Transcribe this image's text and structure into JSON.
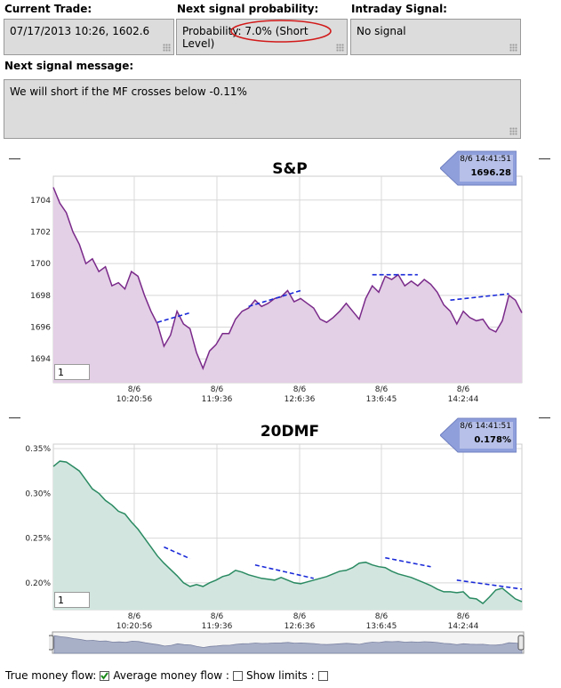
{
  "current_trade": {
    "label": "Current Trade:",
    "value": "07/17/2013 10:26, 1602.6"
  },
  "next_probability": {
    "label": "Next signal probability:",
    "value": "Probability: 7.0% (Short Level)"
  },
  "intraday": {
    "label": "Intraday Signal:",
    "value": "No signal"
  },
  "next_message": {
    "label": "Next signal message:",
    "value": "We will short if  the MF crosses below -0.11%"
  },
  "colors": {
    "sp_line": "#7a2a8a",
    "sp_fill": "#e3cfe6",
    "mf_line": "#2a8a62",
    "mf_fill": "#d2e6df",
    "trend": "#1a2ad8",
    "circle": "#d21a1a",
    "badge": "#8f9fdc"
  },
  "charts": {
    "sp": {
      "title": "S&P",
      "badge_date": "8/6 14:41:51",
      "badge_value": "1696.28",
      "zoom_value": "1"
    },
    "mf": {
      "title": "20DMF",
      "badge_date": "8/6 14:41:51",
      "badge_value": "0.178%",
      "zoom_value": "1"
    }
  },
  "chart_data": [
    {
      "type": "area",
      "title": "S&P",
      "yticks": [
        "1704",
        "1702",
        "1700",
        "1698",
        "1696",
        "1694"
      ],
      "ylim": [
        1692.5,
        1705.5
      ],
      "xticks": [
        {
          "date": "8/6",
          "time": "10:20:56"
        },
        {
          "date": "8/6",
          "time": "11:9:36"
        },
        {
          "date": "8/6",
          "time": "12:6:36"
        },
        {
          "date": "8/6",
          "time": "13:6:45"
        },
        {
          "date": "8/6",
          "time": "14:2:44"
        }
      ],
      "values": [
        1704.8,
        1703.8,
        1703.2,
        1702.0,
        1701.2,
        1700.0,
        1700.3,
        1699.5,
        1699.8,
        1698.6,
        1698.8,
        1698.4,
        1699.5,
        1699.2,
        1698.0,
        1697.0,
        1696.2,
        1694.8,
        1695.5,
        1697.0,
        1696.2,
        1695.9,
        1694.4,
        1693.4,
        1694.5,
        1694.9,
        1695.6,
        1695.6,
        1696.5,
        1697.0,
        1697.2,
        1697.7,
        1697.3,
        1697.5,
        1697.8,
        1697.9,
        1698.3,
        1697.6,
        1697.8,
        1697.5,
        1697.2,
        1696.5,
        1696.3,
        1696.6,
        1697.0,
        1697.5,
        1697.0,
        1696.5,
        1697.8,
        1698.6,
        1698.2,
        1699.2,
        1699.0,
        1699.3,
        1698.6,
        1698.9,
        1698.6,
        1699.0,
        1698.7,
        1698.2,
        1697.4,
        1697.0,
        1696.2,
        1697.0,
        1696.6,
        1696.4,
        1696.5,
        1695.9,
        1695.7,
        1696.4,
        1698.0,
        1697.7,
        1696.9
      ]
    },
    {
      "type": "area",
      "title": "20DMF",
      "yticks": [
        "0.35%",
        "0.30%",
        "0.25%",
        "0.20%"
      ],
      "ylim": [
        0.17,
        0.355
      ],
      "xticks": [
        {
          "date": "8/6",
          "time": "10:20:56"
        },
        {
          "date": "8/6",
          "time": "11:9:36"
        },
        {
          "date": "8/6",
          "time": "12:6:36"
        },
        {
          "date": "8/6",
          "time": "13:6:45"
        },
        {
          "date": "8/6",
          "time": "14:2:44"
        }
      ],
      "values": [
        0.33,
        0.336,
        0.335,
        0.33,
        0.325,
        0.315,
        0.305,
        0.3,
        0.292,
        0.287,
        0.28,
        0.277,
        0.268,
        0.26,
        0.25,
        0.24,
        0.23,
        0.222,
        0.215,
        0.208,
        0.2,
        0.196,
        0.198,
        0.196,
        0.2,
        0.203,
        0.207,
        0.209,
        0.214,
        0.212,
        0.209,
        0.207,
        0.205,
        0.204,
        0.203,
        0.206,
        0.203,
        0.2,
        0.199,
        0.201,
        0.203,
        0.205,
        0.207,
        0.21,
        0.213,
        0.214,
        0.217,
        0.222,
        0.223,
        0.22,
        0.218,
        0.217,
        0.213,
        0.21,
        0.208,
        0.206,
        0.203,
        0.2,
        0.197,
        0.193,
        0.19,
        0.19,
        0.189,
        0.19,
        0.183,
        0.182,
        0.177,
        0.184,
        0.192,
        0.194,
        0.188,
        0.182,
        0.179
      ]
    }
  ]
}
